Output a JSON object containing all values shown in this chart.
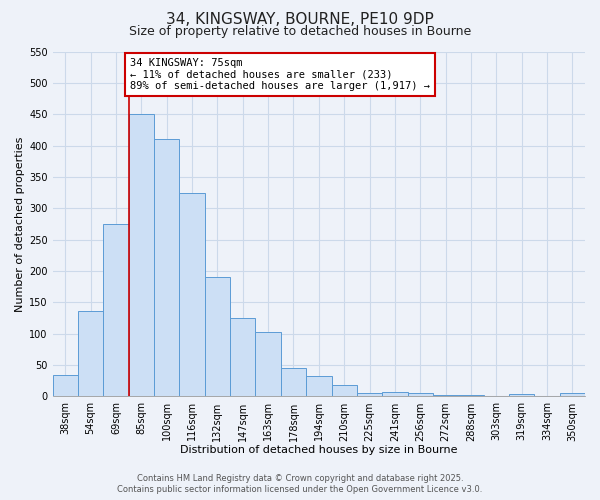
{
  "title": "34, KINGSWAY, BOURNE, PE10 9DP",
  "subtitle": "Size of property relative to detached houses in Bourne",
  "xlabel": "Distribution of detached houses by size in Bourne",
  "ylabel": "Number of detached properties",
  "categories": [
    "38sqm",
    "54sqm",
    "69sqm",
    "85sqm",
    "100sqm",
    "116sqm",
    "132sqm",
    "147sqm",
    "163sqm",
    "178sqm",
    "194sqm",
    "210sqm",
    "225sqm",
    "241sqm",
    "256sqm",
    "272sqm",
    "288sqm",
    "303sqm",
    "319sqm",
    "334sqm",
    "350sqm"
  ],
  "values": [
    35,
    137,
    275,
    450,
    410,
    325,
    190,
    125,
    102,
    46,
    32,
    18,
    6,
    7,
    5,
    3,
    3,
    1,
    4,
    1,
    5
  ],
  "bar_color": "#ccdff5",
  "bar_edge_color": "#5b9bd5",
  "vline_color": "#cc0000",
  "vline_index": 2.5,
  "annotation_text": "34 KINGSWAY: 75sqm\n← 11% of detached houses are smaller (233)\n89% of semi-detached houses are larger (1,917) →",
  "annotation_box_color": "#ffffff",
  "annotation_box_edge_color": "#cc0000",
  "ylim": [
    0,
    550
  ],
  "yticks": [
    0,
    50,
    100,
    150,
    200,
    250,
    300,
    350,
    400,
    450,
    500,
    550
  ],
  "grid_color": "#ccd9ea",
  "background_color": "#eef2f9",
  "footer_line1": "Contains HM Land Registry data © Crown copyright and database right 2025.",
  "footer_line2": "Contains public sector information licensed under the Open Government Licence v3.0.",
  "title_fontsize": 11,
  "subtitle_fontsize": 9,
  "axis_label_fontsize": 8,
  "tick_fontsize": 7,
  "annotation_fontsize": 7.5
}
